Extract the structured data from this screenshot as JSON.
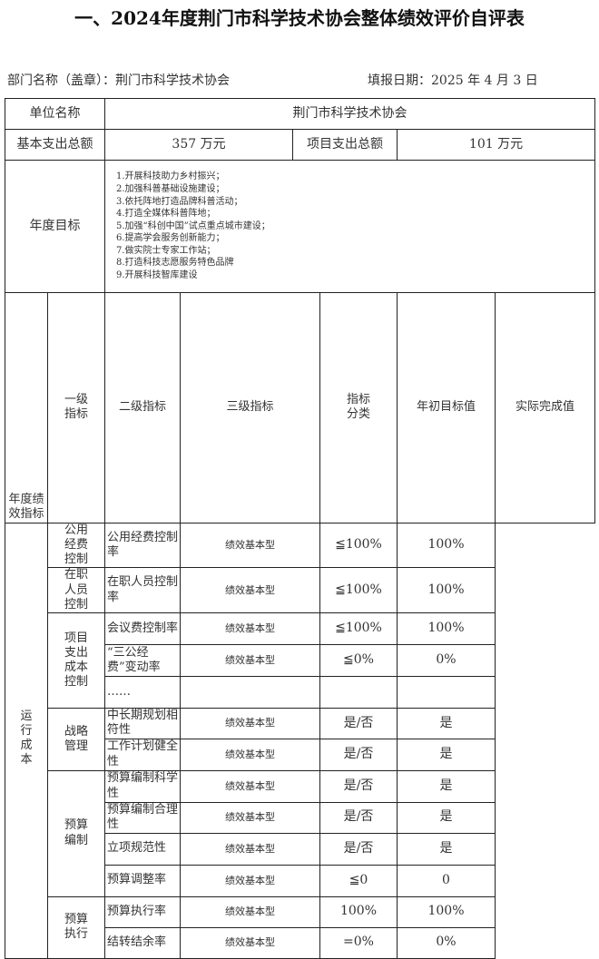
{
  "title": "一、2024年度荆门市科学技术协会整体绩效评价自评表",
  "department_label": "部门名称（盖章）：荆门市科学技术协会",
  "report_date_label": "填报日期：2025 年 4 月 3 日",
  "unit_name_label": "单位名称",
  "unit_name": "荆门市科学技术协会",
  "basic_expense_label": "基本支出总额",
  "basic_expense": "357 万元",
  "project_expense_label": "项目支出总额",
  "project_expense": "101 万元",
  "annual_goal_label": "年度目标",
  "goals": [
    "1.开展科技助力乡村振兴；",
    "2.加强科普基础设施建设；",
    "3.依托阵地打造品牌科普活动；",
    "4.打造全媒体科普阵地；",
    "5.加强“科创中国”试点重点城市建设；",
    "6.提高学会服务创新能力；",
    "7.做实院士专家工作站；",
    "8.打造科技志愿服务特色品牌",
    "9.开展科技智库建设"
  ],
  "indicator_section_label": "年度绩效指标",
  "headers": [
    "一级指标",
    "二级指标",
    "三级指标",
    "指标分类",
    "年初目标值",
    "实际完成值"
  ],
  "level1": "运行成本",
  "groups": {
    "g1": "公用经费控制",
    "g2": "在职人员控制",
    "g3": "项目支出成本控制",
    "g4": "战略管理",
    "g5": "预算编制",
    "g6": "预算执行"
  },
  "rows": [
    {
      "name": "公用经费控制率",
      "type": "绩效基本型",
      "target": "≦100%",
      "actual": "100%"
    },
    {
      "name": "在职人员控制率",
      "type": "绩效基本型",
      "target": "≦100%",
      "actual": "100%"
    },
    {
      "name": "会议费控制率",
      "type": "绩效基本型",
      "target": "≦100%",
      "actual": "100%"
    },
    {
      "name": "“三公经费”变动率",
      "type": "绩效基本型",
      "target": "≦0%",
      "actual": "0%"
    },
    {
      "name": "……",
      "type": "",
      "target": "",
      "actual": ""
    },
    {
      "name": "中长期规划相符性",
      "type": "绩效基本型",
      "target": "是/否",
      "actual": "是"
    },
    {
      "name": "工作计划健全性",
      "type": "绩效基本型",
      "target": "是/否",
      "actual": "是"
    },
    {
      "name": "预算编制科学性",
      "type": "绩效基本型",
      "target": "是/否",
      "actual": "是"
    },
    {
      "name": "预算编制合理性",
      "type": "绩效基本型",
      "target": "是/否",
      "actual": "是"
    },
    {
      "name": "立项规范性",
      "type": "绩效基本型",
      "target": "是/否",
      "actual": "是"
    },
    {
      "name": "预算调整率",
      "type": "绩效基本型",
      "target": "≦0",
      "actual": "0"
    },
    {
      "name": "预算执行率",
      "type": "绩效基本型",
      "target": "100%",
      "actual": "100%"
    },
    {
      "name": "结转结余率",
      "type": "绩效基本型",
      "target": "=0%",
      "actual": "0%"
    }
  ]
}
